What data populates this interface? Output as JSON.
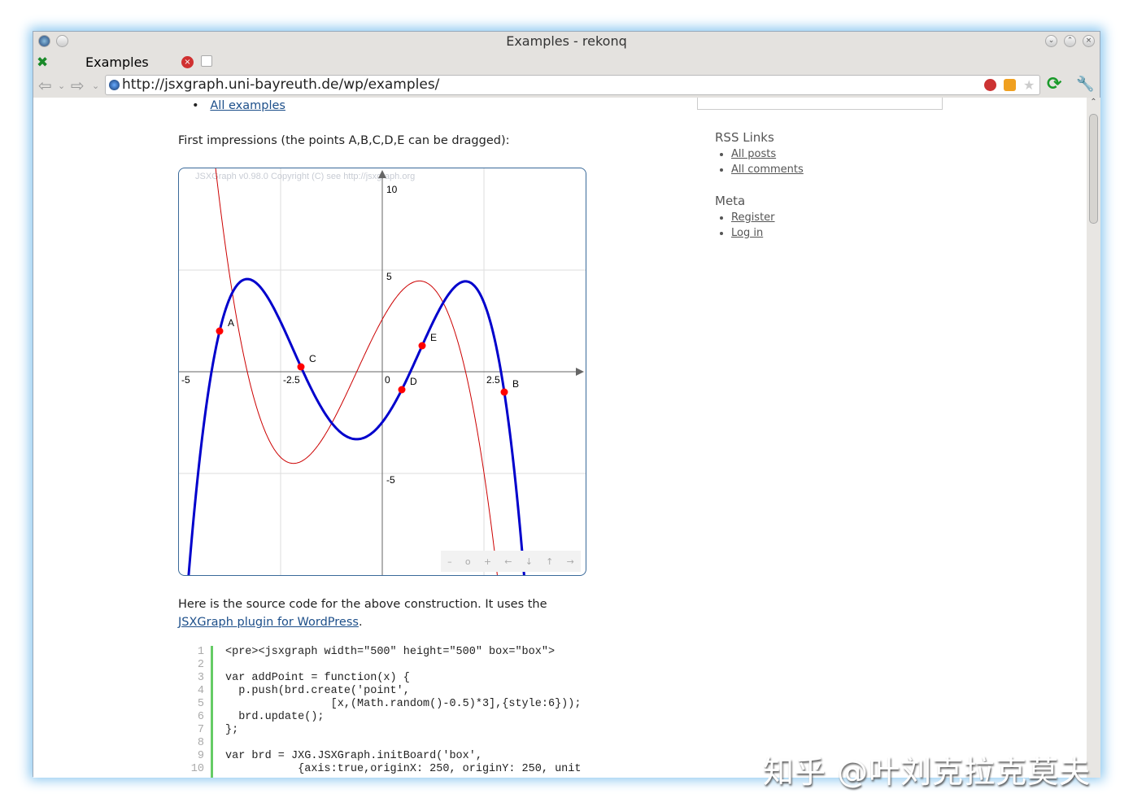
{
  "window": {
    "title": "Examples - rekonq"
  },
  "tabs": [
    {
      "label": "Examples"
    }
  ],
  "url": "http://jsxgraph.uni-bayreuth.de/wp/examples/",
  "content": {
    "top_link": "All examples",
    "intro": "First impressions (the points A,B,C,D,E can be dragged):",
    "source_text_1": "Here is the source code for the above construction. It uses the ",
    "source_link": "JSXGraph plugin for WordPress",
    "source_text_2": ".",
    "code_lines": [
      "<pre><jsxgraph width=\"500\" height=\"500\" box=\"box\">",
      "",
      "var addPoint = function(x) {",
      "  p.push(brd.create('point',",
      "                [x,(Math.random()-0.5)*3],{style:6}));",
      "  brd.update();",
      "};",
      "",
      "var brd = JXG.JSXGraph.initBoard('box',",
      "           {axis:true,originX: 250, originY: 250, unit"
    ]
  },
  "sidebar": {
    "sections": [
      {
        "title": "RSS Links",
        "items": [
          "All posts",
          "All comments"
        ]
      },
      {
        "title": "Meta",
        "items": [
          "Register",
          "Log in"
        ]
      }
    ]
  },
  "chart_data": {
    "type": "line",
    "copyright": "JSXGraph v0.98.0 Copyright (C) see http://jsxgraph.org",
    "xlim": [
      -5,
      5
    ],
    "ylim": [
      -10,
      10
    ],
    "grid": true,
    "x_tick_labels": [
      "-5",
      "-2.5",
      "0",
      "2.5"
    ],
    "y_tick_labels": [
      "10",
      "5",
      "-5"
    ],
    "points": [
      {
        "name": "A",
        "x": -4.0,
        "y": 2.0
      },
      {
        "name": "B",
        "x": 3.0,
        "y": -1.0
      },
      {
        "name": "C",
        "x": -2.0,
        "y": 0.24
      },
      {
        "name": "D",
        "x": 0.48,
        "y": -0.88
      },
      {
        "name": "E",
        "x": 0.98,
        "y": 1.28
      }
    ],
    "series": [
      {
        "curve": "interpolating polynomial through A-E",
        "color": "#0000cc"
      },
      {
        "curve": "derivative",
        "color": "#cc0000"
      }
    ],
    "navigation": [
      "–",
      "o",
      "+",
      "←",
      "↓",
      "↑",
      "→"
    ]
  },
  "watermark": "知乎 @叶刘克拉克莫夫"
}
